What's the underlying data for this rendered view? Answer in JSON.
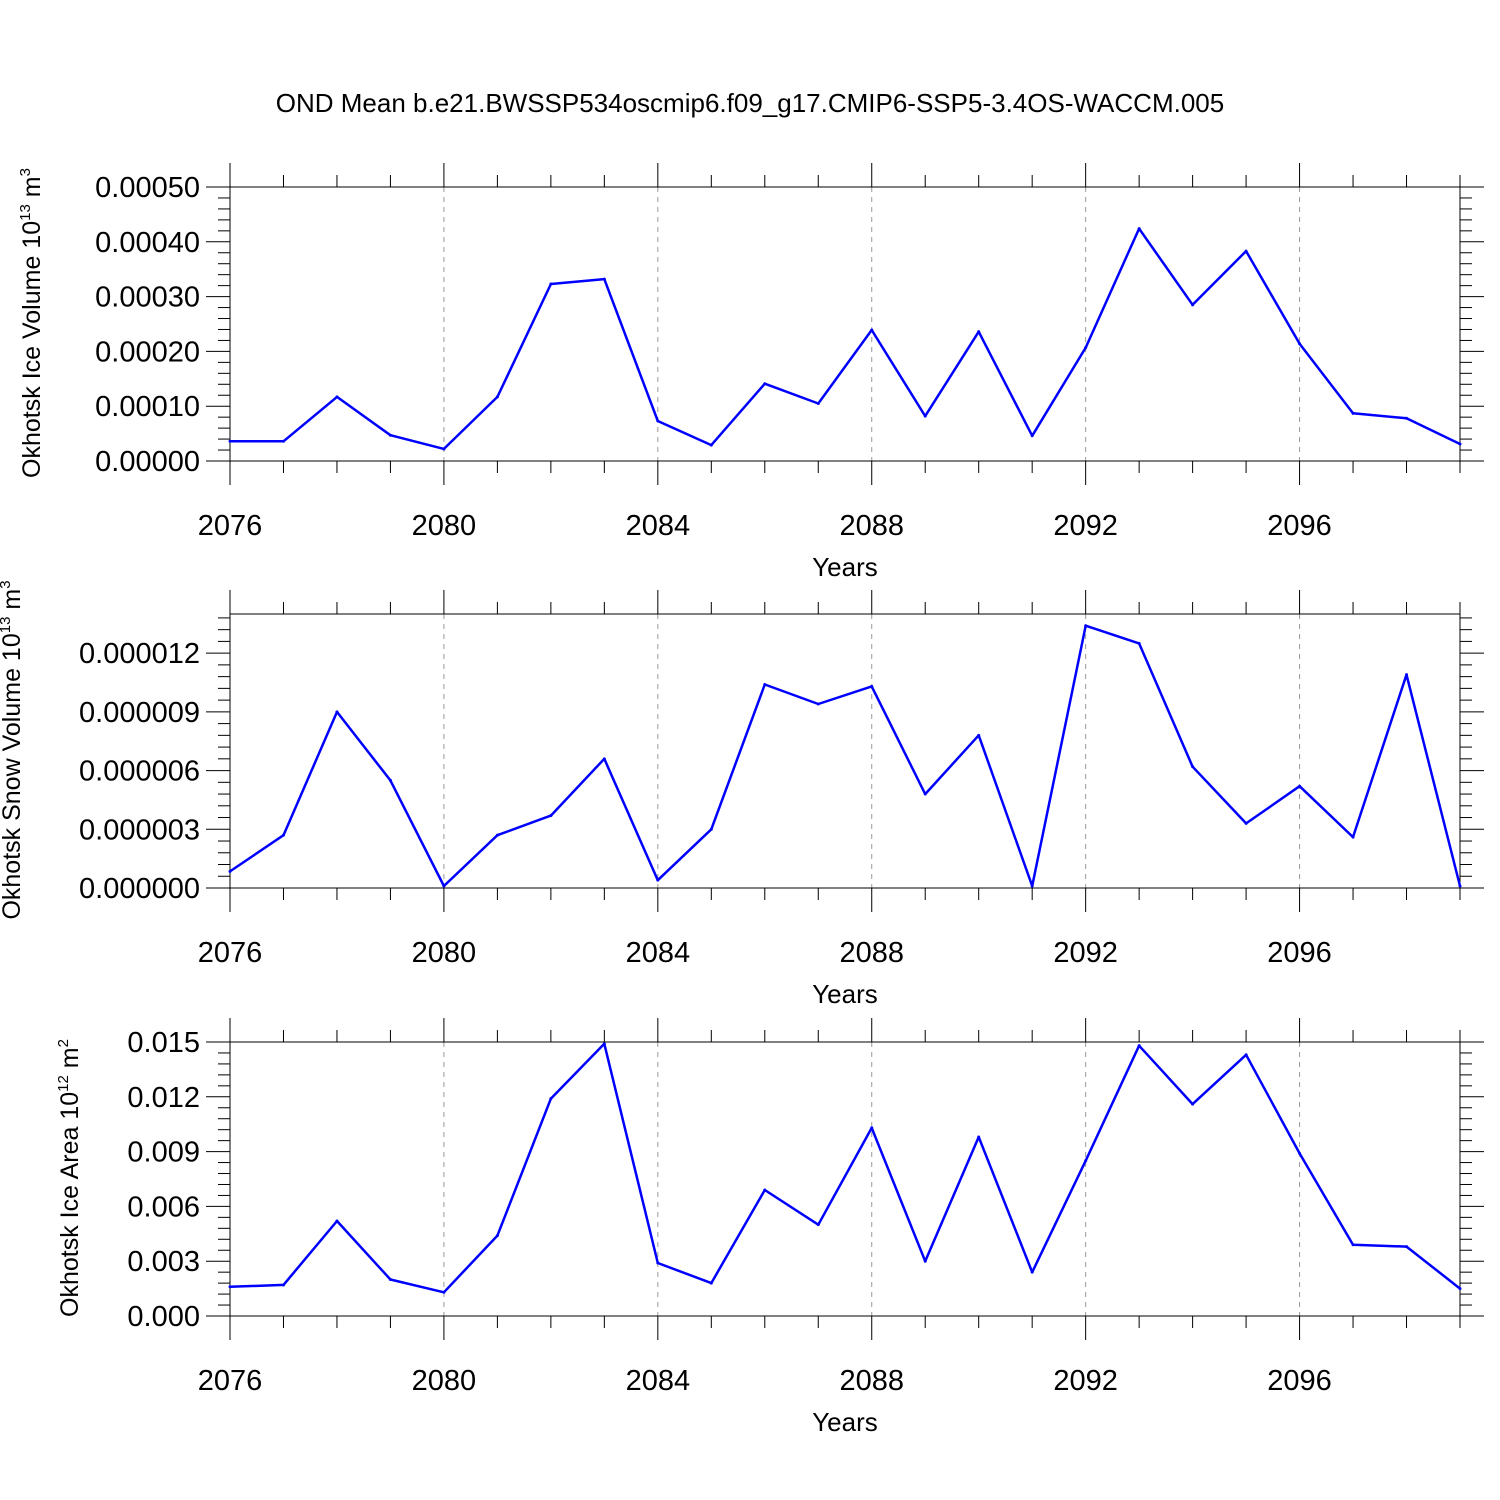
{
  "title": "OND Mean b.e21.BWSSP534oscmip6.f09_g17.CMIP6-SSP5-3.4OS-WACCM.005",
  "line_color": "#0000ff",
  "axis_color": "#000000",
  "grid_color": "#999999",
  "chart_data": [
    {
      "type": "line",
      "ylabel": "Okhotsk Ice Volume 10",
      "ylabel_exp": "13",
      "ylabel_unit": " m",
      "ylabel_unit_exp": "3",
      "xlabel": "Years",
      "xlim": [
        2076,
        2099
      ],
      "ylim": [
        0,
        0.0005
      ],
      "xticks": [
        2076,
        2080,
        2084,
        2088,
        2092,
        2096
      ],
      "xtick_labels": [
        "2076",
        "2080",
        "2084",
        "2088",
        "2092",
        "2096"
      ],
      "yticks": [
        0,
        0.0001,
        0.0002,
        0.0003,
        0.0004,
        0.0005
      ],
      "ytick_labels": [
        "0.00000",
        "0.00010",
        "0.00020",
        "0.00030",
        "0.00040",
        "0.00050"
      ],
      "grid": "vertical dashed at labeled years",
      "x": [
        2076,
        2077,
        2078,
        2079,
        2080,
        2081,
        2082,
        2083,
        2084,
        2085,
        2086,
        2087,
        2088,
        2089,
        2090,
        2091,
        2092,
        2093,
        2094,
        2095,
        2096,
        2097,
        2098,
        2099
      ],
      "values": [
        3.6e-05,
        3.6e-05,
        0.000117,
        4.7e-05,
        2.2e-05,
        0.000117,
        0.000323,
        0.000332,
        7.3e-05,
        2.9e-05,
        0.000141,
        0.000105,
        0.000239,
        8.2e-05,
        0.000236,
        4.6e-05,
        0.000207,
        0.000424,
        0.000285,
        0.000383,
        0.000214,
        8.7e-05,
        7.8e-05,
        3.1e-05
      ]
    },
    {
      "type": "line",
      "ylabel": "Okhotsk Snow Volume 10",
      "ylabel_exp": "13",
      "ylabel_unit": " m",
      "ylabel_unit_exp": "3",
      "xlabel": "Years",
      "xlim": [
        2076,
        2099
      ],
      "ylim": [
        0,
        1.4e-05
      ],
      "xticks": [
        2076,
        2080,
        2084,
        2088,
        2092,
        2096
      ],
      "xtick_labels": [
        "2076",
        "2080",
        "2084",
        "2088",
        "2092",
        "2096"
      ],
      "yticks": [
        0,
        3e-06,
        6e-06,
        9e-06,
        1.2e-05
      ],
      "ytick_labels": [
        "0.000000",
        "0.000003",
        "0.000006",
        "0.000009",
        "0.000012"
      ],
      "grid": "vertical dashed at labeled years",
      "x": [
        2076,
        2077,
        2078,
        2079,
        2080,
        2081,
        2082,
        2083,
        2084,
        2085,
        2086,
        2087,
        2088,
        2089,
        2090,
        2091,
        2092,
        2093,
        2094,
        2095,
        2096,
        2097,
        2098,
        2099
      ],
      "values": [
        8.5e-07,
        2.7e-06,
        9e-06,
        5.5e-06,
        1e-07,
        2.7e-06,
        3.7e-06,
        6.6e-06,
        4e-07,
        3e-06,
        1.04e-05,
        9.4e-06,
        1.03e-05,
        4.8e-06,
        7.8e-06,
        1e-07,
        1.34e-05,
        1.25e-05,
        6.2e-06,
        3.3e-06,
        5.2e-06,
        2.6e-06,
        1.09e-05,
        1e-07
      ]
    },
    {
      "type": "line",
      "ylabel": "Okhotsk Ice Area 10",
      "ylabel_exp": "12",
      "ylabel_unit": " m",
      "ylabel_unit_exp": "2",
      "xlabel": "Years",
      "xlim": [
        2076,
        2099
      ],
      "ylim": [
        0,
        0.015
      ],
      "xticks": [
        2076,
        2080,
        2084,
        2088,
        2092,
        2096
      ],
      "xtick_labels": [
        "2076",
        "2080",
        "2084",
        "2088",
        "2092",
        "2096"
      ],
      "yticks": [
        0,
        0.003,
        0.006,
        0.009,
        0.012,
        0.015
      ],
      "ytick_labels": [
        "0.000",
        "0.003",
        "0.006",
        "0.009",
        "0.012",
        "0.015"
      ],
      "grid": "vertical dashed at labeled years",
      "x": [
        2076,
        2077,
        2078,
        2079,
        2080,
        2081,
        2082,
        2083,
        2084,
        2085,
        2086,
        2087,
        2088,
        2089,
        2090,
        2091,
        2092,
        2093,
        2094,
        2095,
        2096,
        2097,
        2098,
        2099
      ],
      "values": [
        0.0016,
        0.0017,
        0.0052,
        0.002,
        0.0013,
        0.0044,
        0.0119,
        0.0149,
        0.0029,
        0.0018,
        0.0069,
        0.005,
        0.0103,
        0.003,
        0.0098,
        0.0024,
        0.0085,
        0.0148,
        0.0116,
        0.0143,
        0.0089,
        0.0039,
        0.0038,
        0.0015
      ]
    }
  ]
}
